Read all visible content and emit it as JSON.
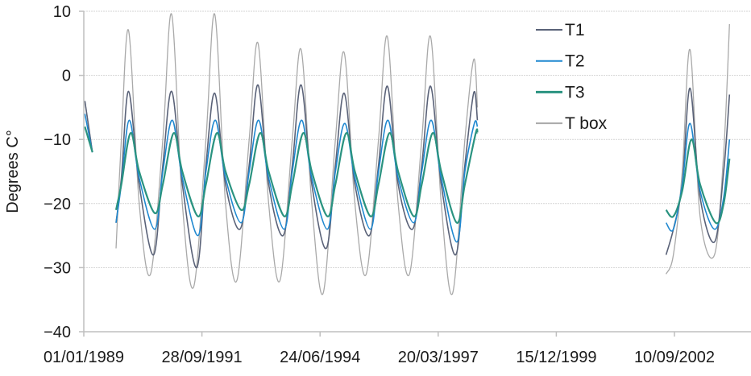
{
  "chart_data": {
    "type": "line",
    "title": "",
    "xlabel": "",
    "ylabel": "Degrees C°",
    "ylim": [
      -40,
      10
    ],
    "yticks": [
      10,
      0,
      -10,
      -20,
      -30,
      -40
    ],
    "ytick_labels": [
      "10",
      "0",
      "−10",
      "−20",
      "−30",
      "−40"
    ],
    "xlim": [
      "1989-01-01",
      "2004-06-30"
    ],
    "xticks": [
      "1989-01-01",
      "1991-09-28",
      "1994-06-24",
      "1997-03-20",
      "1999-12-15",
      "2002-09-10"
    ],
    "xtick_labels": [
      "01/01/1989",
      "28/09/1991",
      "24/06/1994",
      "20/03/1997",
      "15/12/1999",
      "10/09/2002"
    ],
    "grid": "horizontal",
    "legend_position": "top-right",
    "series": [
      {
        "name": "T box",
        "color": "#a9a9a9",
        "width": 1.3,
        "segments": [
          [
            [
              "1989-01-10",
              -4
            ],
            [
              "1989-03-15",
              -12
            ]
          ],
          [
            [
              "1989-10-01",
              -27
            ],
            [
              "1989-11-15",
              -10
            ],
            [
              "1990-01-15",
              7
            ],
            [
              "1990-04-15",
              -20
            ],
            [
              "1990-07-20",
              -31
            ],
            [
              "1990-11-01",
              -10
            ],
            [
              "1991-01-15",
              9.5
            ],
            [
              "1991-04-15",
              -20
            ],
            [
              "1991-07-20",
              -33
            ],
            [
              "1991-11-01",
              -10
            ],
            [
              "1992-01-15",
              9.5
            ],
            [
              "1992-04-15",
              -20
            ],
            [
              "1992-07-20",
              -32
            ],
            [
              "1992-11-01",
              -10
            ],
            [
              "1993-01-15",
              5
            ],
            [
              "1993-04-15",
              -20
            ],
            [
              "1993-07-20",
              -32
            ],
            [
              "1993-11-01",
              -10
            ],
            [
              "1994-01-15",
              4
            ],
            [
              "1994-04-15",
              -20
            ],
            [
              "1994-07-20",
              -34
            ],
            [
              "1994-11-01",
              -10
            ],
            [
              "1995-01-15",
              3.5
            ],
            [
              "1995-04-15",
              -20
            ],
            [
              "1995-07-20",
              -31
            ],
            [
              "1995-11-01",
              -10
            ],
            [
              "1996-01-15",
              6
            ],
            [
              "1996-04-15",
              -20
            ],
            [
              "1996-07-20",
              -31
            ],
            [
              "1996-11-01",
              -10
            ],
            [
              "1997-01-15",
              6
            ],
            [
              "1997-04-15",
              -20
            ],
            [
              "1997-07-20",
              -34
            ],
            [
              "1997-11-01",
              -10
            ],
            [
              "1998-01-15",
              2.5
            ],
            [
              "1998-02-15",
              -5
            ]
          ],
          [
            [
              "2002-07-01",
              -31
            ],
            [
              "2002-09-01",
              -28
            ],
            [
              "2002-11-15",
              -15
            ],
            [
              "2003-01-20",
              4
            ],
            [
              "2003-04-15",
              -22
            ],
            [
              "2003-08-15",
              -28
            ],
            [
              "2003-11-01",
              -12
            ],
            [
              "2003-12-20",
              8
            ]
          ]
        ]
      },
      {
        "name": "T1",
        "color": "#5a6278",
        "width": 1.6,
        "segments": [
          [
            [
              "1989-01-10",
              -4
            ],
            [
              "1989-03-15",
              -12
            ]
          ],
          [
            [
              "1989-10-01",
              -23
            ],
            [
              "1989-11-15",
              -16
            ],
            [
              "1990-01-15",
              -2.5
            ],
            [
              "1990-04-15",
              -17
            ],
            [
              "1990-08-15",
              -28
            ],
            [
              "1990-11-01",
              -14
            ],
            [
              "1991-01-15",
              -2.5
            ],
            [
              "1991-04-15",
              -17
            ],
            [
              "1991-08-15",
              -30
            ],
            [
              "1991-11-01",
              -14
            ],
            [
              "1992-01-15",
              -2.8
            ],
            [
              "1992-04-15",
              -17
            ],
            [
              "1992-08-15",
              -24
            ],
            [
              "1992-11-01",
              -14
            ],
            [
              "1993-01-15",
              -1.5
            ],
            [
              "1993-04-15",
              -17
            ],
            [
              "1993-08-15",
              -25
            ],
            [
              "1993-11-01",
              -14
            ],
            [
              "1994-01-15",
              -1.5
            ],
            [
              "1994-04-15",
              -17
            ],
            [
              "1994-08-15",
              -27
            ],
            [
              "1994-11-01",
              -14
            ],
            [
              "1995-01-15",
              -2.8
            ],
            [
              "1995-04-15",
              -17
            ],
            [
              "1995-08-15",
              -25
            ],
            [
              "1995-11-01",
              -14
            ],
            [
              "1996-01-15",
              -1.7
            ],
            [
              "1996-04-15",
              -17
            ],
            [
              "1996-08-15",
              -24
            ],
            [
              "1996-11-01",
              -14
            ],
            [
              "1997-01-15",
              -1.7
            ],
            [
              "1997-04-15",
              -17
            ],
            [
              "1997-08-15",
              -28
            ],
            [
              "1997-11-01",
              -14
            ],
            [
              "1998-01-15",
              -2.7
            ],
            [
              "1998-02-15",
              -7
            ]
          ],
          [
            [
              "2002-07-01",
              -28
            ],
            [
              "2002-09-01",
              -24
            ],
            [
              "2002-11-15",
              -17
            ],
            [
              "2003-01-20",
              -2
            ],
            [
              "2003-04-15",
              -19
            ],
            [
              "2003-08-15",
              -26
            ],
            [
              "2003-11-01",
              -15
            ],
            [
              "2003-12-20",
              -3
            ]
          ]
        ]
      },
      {
        "name": "T2",
        "color": "#1f88d0",
        "width": 1.6,
        "segments": [
          [
            [
              "1989-01-10",
              -6
            ],
            [
              "1989-03-15",
              -12
            ]
          ],
          [
            [
              "1989-10-01",
              -23
            ],
            [
              "1989-11-15",
              -17
            ],
            [
              "1990-01-20",
              -7
            ],
            [
              "1990-04-15",
              -16
            ],
            [
              "1990-08-25",
              -24
            ],
            [
              "1990-11-01",
              -15
            ],
            [
              "1991-01-20",
              -7
            ],
            [
              "1991-04-15",
              -16
            ],
            [
              "1991-08-25",
              -25
            ],
            [
              "1991-11-01",
              -15
            ],
            [
              "1992-01-20",
              -7
            ],
            [
              "1992-04-15",
              -16
            ],
            [
              "1992-08-25",
              -23
            ],
            [
              "1992-11-01",
              -15
            ],
            [
              "1993-01-20",
              -7
            ],
            [
              "1993-04-15",
              -16
            ],
            [
              "1993-08-25",
              -24
            ],
            [
              "1993-11-01",
              -15
            ],
            [
              "1994-01-20",
              -7
            ],
            [
              "1994-04-15",
              -16
            ],
            [
              "1994-08-25",
              -24
            ],
            [
              "1994-11-01",
              -15
            ],
            [
              "1995-01-20",
              -7.5
            ],
            [
              "1995-04-15",
              -16
            ],
            [
              "1995-08-25",
              -24
            ],
            [
              "1995-11-01",
              -15
            ],
            [
              "1996-01-20",
              -7
            ],
            [
              "1996-04-15",
              -16
            ],
            [
              "1996-08-25",
              -23
            ],
            [
              "1996-11-01",
              -15
            ],
            [
              "1997-01-20",
              -7
            ],
            [
              "1997-04-15",
              -16
            ],
            [
              "1997-08-25",
              -26
            ],
            [
              "1997-11-01",
              -15
            ],
            [
              "1998-01-20",
              -7.5
            ],
            [
              "1998-02-15",
              -8
            ]
          ],
          [
            [
              "2002-07-01",
              -23
            ],
            [
              "2002-09-01",
              -24
            ],
            [
              "2002-11-15",
              -17
            ],
            [
              "2003-01-20",
              -7.5
            ],
            [
              "2003-04-15",
              -18
            ],
            [
              "2003-08-15",
              -24
            ],
            [
              "2003-11-01",
              -19
            ],
            [
              "2003-12-20",
              -10
            ]
          ]
        ]
      },
      {
        "name": "T3",
        "color": "#2a9380",
        "width": 2.2,
        "segments": [
          [
            [
              "1989-01-10",
              -8
            ],
            [
              "1989-03-15",
              -12
            ]
          ],
          [
            [
              "1989-10-01",
              -21
            ],
            [
              "1989-11-15",
              -17
            ],
            [
              "1990-02-01",
              -9
            ],
            [
              "1990-04-15",
              -15
            ],
            [
              "1990-08-25",
              -21.5
            ],
            [
              "1990-11-01",
              -17
            ],
            [
              "1991-02-01",
              -9
            ],
            [
              "1991-04-15",
              -15
            ],
            [
              "1991-08-25",
              -22
            ],
            [
              "1991-11-01",
              -17
            ],
            [
              "1992-02-01",
              -9
            ],
            [
              "1992-04-15",
              -15
            ],
            [
              "1992-08-25",
              -21
            ],
            [
              "1992-11-01",
              -17
            ],
            [
              "1993-02-01",
              -9
            ],
            [
              "1993-04-15",
              -15
            ],
            [
              "1993-08-25",
              -22
            ],
            [
              "1993-11-01",
              -17
            ],
            [
              "1994-02-01",
              -9
            ],
            [
              "1994-04-15",
              -15
            ],
            [
              "1994-08-25",
              -22
            ],
            [
              "1994-11-01",
              -17
            ],
            [
              "1995-02-01",
              -9
            ],
            [
              "1995-04-15",
              -15
            ],
            [
              "1995-08-25",
              -22
            ],
            [
              "1995-11-01",
              -17
            ],
            [
              "1996-02-01",
              -9
            ],
            [
              "1996-04-15",
              -15
            ],
            [
              "1996-08-25",
              -22
            ],
            [
              "1996-11-01",
              -17
            ],
            [
              "1997-02-01",
              -9
            ],
            [
              "1997-04-15",
              -15
            ],
            [
              "1997-08-25",
              -23
            ],
            [
              "1997-11-01",
              -17
            ],
            [
              "1998-02-01",
              -9
            ],
            [
              "1998-02-15",
              -9
            ]
          ],
          [
            [
              "2002-07-01",
              -21
            ],
            [
              "2002-09-01",
              -22
            ],
            [
              "2002-11-15",
              -18
            ],
            [
              "2003-02-01",
              -10
            ],
            [
              "2003-04-15",
              -17
            ],
            [
              "2003-08-25",
              -23
            ],
            [
              "2003-11-01",
              -20
            ],
            [
              "2003-12-20",
              -13
            ]
          ]
        ]
      }
    ],
    "legend": [
      {
        "label": "T1",
        "color": "#5a6278"
      },
      {
        "label": "T2",
        "color": "#1f88d0"
      },
      {
        "label": "T3",
        "color": "#2a9380"
      },
      {
        "label": "T box",
        "color": "#a9a9a9"
      }
    ]
  }
}
